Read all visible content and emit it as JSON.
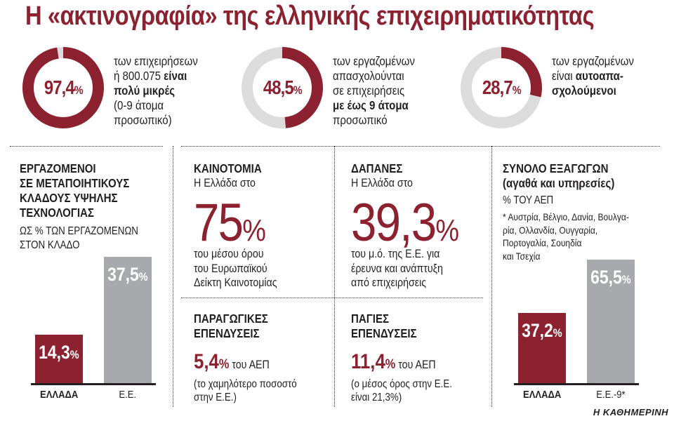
{
  "title": "Η «ακτινογραφία» της ελληνικής επιχειρηματικότητας",
  "colors": {
    "accent": "#8c2230",
    "gray": "#a7a9ac",
    "track": "#dcdcdc",
    "text": "#231f20"
  },
  "donuts": [
    {
      "value": 97.4,
      "value_text": "97,4",
      "pct": "%",
      "lines": [
        [
          {
            "t": "των επιχειρήσεων",
            "b": false
          }
        ],
        [
          {
            "t": "ή 800.075 ",
            "b": false
          },
          {
            "t": "είναι",
            "b": true
          }
        ],
        [
          {
            "t": "πολύ μικρές",
            "b": true
          }
        ],
        [
          {
            "t": "(0-9 άτομα",
            "b": false
          }
        ],
        [
          {
            "t": "προσωπικό)",
            "b": false
          }
        ]
      ]
    },
    {
      "value": 48.5,
      "value_text": "48,5",
      "pct": "%",
      "lines": [
        [
          {
            "t": "των εργαζομένων",
            "b": false
          }
        ],
        [
          {
            "t": "απασχολούνται",
            "b": false
          }
        ],
        [
          {
            "t": "σε επιχειρήσεις",
            "b": false
          }
        ],
        [
          {
            "t": "με έως 9 άτομα",
            "b": true
          }
        ],
        [
          {
            "t": "προσωπικό",
            "b": false
          }
        ]
      ]
    },
    {
      "value": 28.7,
      "value_text": "28,7",
      "pct": "%",
      "lines": [
        [
          {
            "t": "των εργαζομένων",
            "b": false
          }
        ],
        [
          {
            "t": "είναι ",
            "b": false
          },
          {
            "t": "αυτοαπα-",
            "b": true
          }
        ],
        [
          {
            "t": "σχολούμενοι",
            "b": true
          }
        ]
      ]
    }
  ],
  "hightech": {
    "heading_lines": [
      "ΕΡΓΑΖΟΜΕΝΟΙ",
      "ΣΕ ΜΕΤΑΠΟΙΗΤΙΚΟΥΣ",
      "ΚΛΑΔΟΥΣ ΥΨΗΛΗΣ",
      "ΤΕΧΝΟΛΟΓΙΑΣ"
    ],
    "sub_lines": [
      "ΩΣ % ΤΩΝ ΕΡΓΑΖΟΜΕΝΩΝ",
      "ΣΤΟΝ ΚΛΑΔΟ"
    ]
  },
  "innovation": {
    "heading": "ΚΑΙΝΟΤΟΜΙΑ",
    "intro": "Η Ελλάδα στο",
    "value_text": "75",
    "pct": "%",
    "lines": [
      "του μέσου όρου",
      "του Ευρωπαϊκού",
      "Δείκτη Καινοτομίας"
    ]
  },
  "spending": {
    "heading": "ΔΑΠΑΝΕΣ",
    "intro": "Η Ελλάδα στο",
    "value_text": "39,3",
    "pct": "%",
    "lines": [
      "του μ.ό. της Ε.Ε. για",
      "έρευνα και ανάπτυξη",
      "από επιχειρήσεις"
    ]
  },
  "productive": {
    "heading_lines": [
      "ΠΑΡΑΓΩΓΙΚΕΣ",
      "ΕΠΕΝΔΥΣΕΙΣ"
    ],
    "value_text": "5,4",
    "pct": "%",
    "rest": " του ΑΕΠ",
    "note_lines": [
      "(το χαμηλότερο ποσοστό",
      "στην Ε.Ε.)"
    ]
  },
  "fixed": {
    "heading_lines": [
      "ΠΑΓΙΕΣ",
      "ΕΠΕΝΔΥΣΕΙΣ"
    ],
    "value_text": "11,4",
    "pct": "%",
    "rest": " του ΑΕΠ",
    "note_lines": [
      "(ο μέσος όρος στην Ε.Ε.",
      "είναι 21,3%)"
    ]
  },
  "exports": {
    "heading_lines": [
      "ΣΥΝΟΛΟ ΕΞΑΓΩΓΩΝ",
      "(αγαθά και υπηρεσίες)"
    ],
    "sub": "% ΤΟΥ ΑΕΠ",
    "footnote_lines": [
      "* Αυστρία, Βέλγιο, Δανία, Βουλγα-",
      "ρία, Ολλανδία, Ουγγαρία,",
      "Πορτογαλία, Σουηδία",
      "και Τσεχία"
    ]
  },
  "chart_data": [
    {
      "type": "bar",
      "title": "ΕΡΓΑΖΟΜΕΝΟΙ ΣΕ ΜΕΤΑΠΟΙΗΤΙΚΟΥΣ ΚΛΑΔΟΥΣ ΥΨΗΛΗΣ ΤΕΧΝΟΛΟΓΙΑΣ",
      "ylabel": "ΩΣ % ΤΩΝ ΕΡΓΑΖΟΜΕΝΩΝ ΣΤΟΝ ΚΛΑΔΟ",
      "categories": [
        "ΕΛΛΑΔΑ",
        "Ε.Ε."
      ],
      "values": [
        14.3,
        37.5
      ],
      "labels": [
        "14,3",
        "37,5"
      ],
      "pct": "%",
      "colors": [
        "#8c2230",
        "#a7a9ac"
      ],
      "ylim": [
        0,
        40
      ]
    },
    {
      "type": "bar",
      "title": "ΣΥΝΟΛΟ ΕΞΑΓΩΓΩΝ (αγαθά και υπηρεσίες)",
      "ylabel": "% ΤΟΥ ΑΕΠ",
      "categories": [
        "ΕΛΛΑΔΑ",
        "Ε.Ε.-9*"
      ],
      "values": [
        37.2,
        65.5
      ],
      "labels": [
        "37,2",
        "65,5"
      ],
      "pct": "%",
      "colors": [
        "#8c2230",
        "#a7a9ac"
      ],
      "ylim": [
        0,
        70
      ]
    }
  ],
  "source": "Η ΚΑΘΗΜΕΡΙΝΗ"
}
